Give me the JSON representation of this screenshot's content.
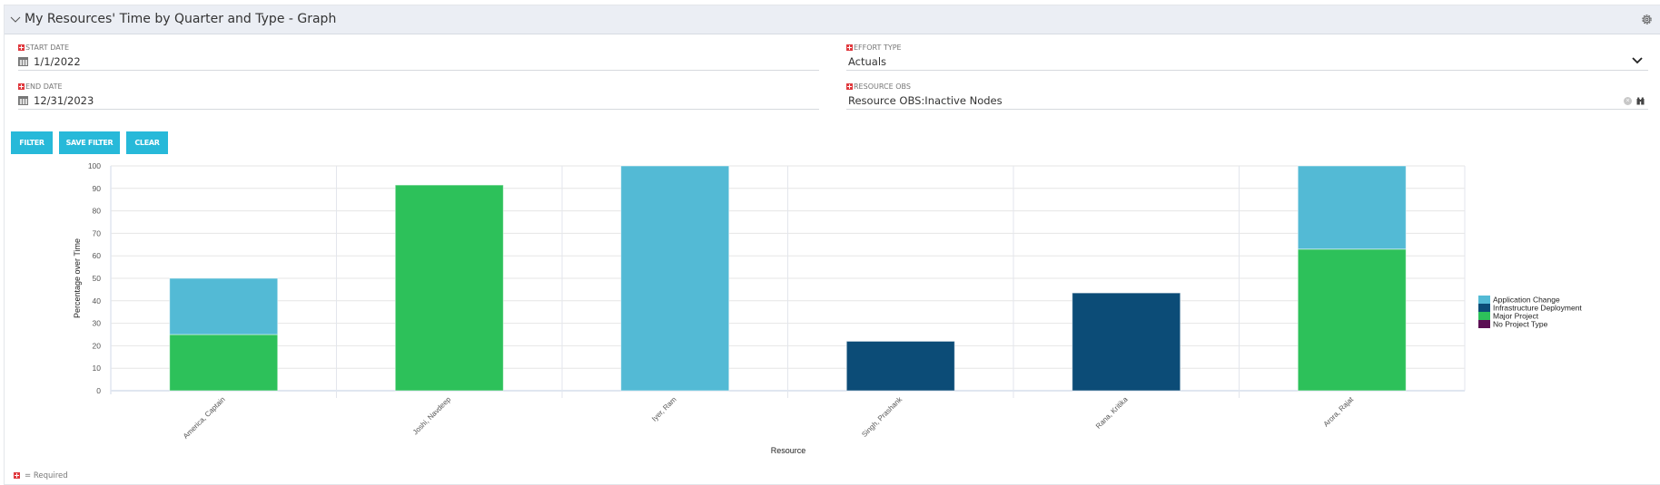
{
  "panel": {
    "title": "My Resources' Time by Quarter and Type - Graph",
    "collapse_icon": "chevron-down-icon",
    "settings_icon": "gear-icon"
  },
  "filters": {
    "start_date": {
      "label": "START DATE",
      "value": "1/1/2022",
      "icon": "calendar-icon",
      "required": true
    },
    "end_date": {
      "label": "END DATE",
      "value": "12/31/2023",
      "icon": "calendar-icon",
      "required": true
    },
    "effort_type": {
      "label": "EFFORT TYPE",
      "value": "Actuals",
      "icon": "chevron-down-icon",
      "required": true
    },
    "resource_obs": {
      "label": "RESOURCE OBS",
      "value": "Resource OBS:Inactive Nodes",
      "icons": [
        "clear-icon",
        "binoculars-icon"
      ],
      "required": true
    }
  },
  "buttons": {
    "filter": "FILTER",
    "save_filter": "SAVE FILTER",
    "clear": "CLEAR"
  },
  "footer": {
    "required_note": "= Required"
  },
  "colors": {
    "Application Change": "#53bad5",
    "Infrastructure Deployment": "#0c4c77",
    "Major Project": "#2dc15a",
    "No Project Type": "#5b0f53",
    "button": "#27b9d9",
    "header_bg": "#ebeef4"
  },
  "chart_data": {
    "type": "bar",
    "stacked": true,
    "title": "",
    "xlabel": "Resource",
    "ylabel": "Percentage over Time",
    "ylim": [
      0,
      100
    ],
    "yticks": [
      0,
      10,
      20,
      30,
      40,
      50,
      60,
      70,
      80,
      90,
      100
    ],
    "grid": true,
    "legend_position": "right",
    "categories": [
      "America, Captain",
      "Joshi, Navdeep",
      "Iyer, Ram",
      "Singh, Prashank",
      "Rana, Kritika",
      "Arora, Rajat"
    ],
    "series": [
      {
        "name": "Application Change",
        "values": [
          25,
          0,
          100,
          0,
          0,
          37
        ]
      },
      {
        "name": "Infrastructure Deployment",
        "values": [
          0,
          0,
          0,
          22,
          43.5,
          0
        ]
      },
      {
        "name": "Major Project",
        "values": [
          25,
          91.5,
          0,
          0,
          0,
          63
        ]
      },
      {
        "name": "No Project Type",
        "values": [
          0,
          0,
          0,
          0,
          0,
          0
        ]
      }
    ],
    "legend": [
      "Application Change",
      "Infrastructure Deployment",
      "Major Project",
      "No Project Type"
    ]
  }
}
